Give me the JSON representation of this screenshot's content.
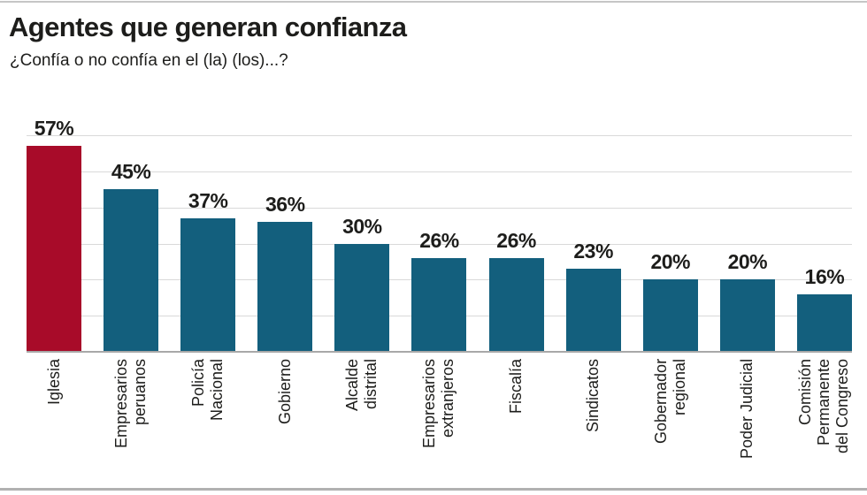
{
  "header": {
    "title": "Agentes que generan confianza",
    "subtitle": "¿Confía o no confía en el (la) (los)...?"
  },
  "chart_data": {
    "type": "bar",
    "title": "Agentes que generan confianza",
    "subtitle": "¿Confía o no confía en el (la) (los)...?",
    "categories": [
      "Iglesia",
      "Empresarios\nperuanos",
      "Policía\nNacional",
      "Gobierno",
      "Alcalde\ndistrital",
      "Empresarios\nextranjeros",
      "Fiscalía",
      "Sindicatos",
      "Gobernador\nregional",
      "Poder Judicial",
      "Comisión\nPermanente\ndel Congreso"
    ],
    "values": [
      57,
      45,
      37,
      36,
      30,
      26,
      26,
      23,
      20,
      20,
      16
    ],
    "value_labels": [
      "57%",
      "45%",
      "37%",
      "36%",
      "30%",
      "26%",
      "26%",
      "23%",
      "20%",
      "20%",
      "16%"
    ],
    "unit": "%",
    "ylim": [
      0,
      60
    ],
    "gridline_step": 10,
    "grid": true,
    "legend": "none",
    "highlight_index": 0,
    "colors": {
      "highlight_bar": "#a80b29",
      "bar": "#135f7d",
      "gridline": "#d9d9d9",
      "axis_line": "#a8a8a8",
      "text": "#1d1d1b"
    }
  }
}
